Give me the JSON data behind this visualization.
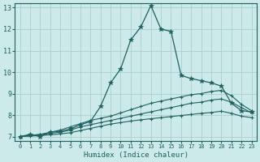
{
  "title": "",
  "xlabel": "Humidex (Indice chaleur)",
  "xlim": [
    -0.5,
    23.5
  ],
  "ylim": [
    6.8,
    13.2
  ],
  "yticks": [
    7,
    8,
    9,
    10,
    11,
    12,
    13
  ],
  "xticks": [
    0,
    1,
    2,
    3,
    4,
    5,
    6,
    7,
    8,
    9,
    10,
    11,
    12,
    13,
    14,
    15,
    16,
    17,
    18,
    19,
    20,
    21,
    22,
    23
  ],
  "bg_color": "#cceaea",
  "grid_color": "#aacece",
  "line_color": "#206060",
  "line1_x": [
    0,
    1,
    2,
    3,
    4,
    5,
    6,
    7,
    8,
    9,
    10,
    11,
    12,
    13,
    14,
    15,
    16,
    17,
    18,
    19,
    20,
    21,
    22,
    23
  ],
  "line1_y": [
    7.0,
    7.1,
    7.0,
    7.2,
    7.25,
    7.35,
    7.55,
    7.7,
    8.4,
    9.5,
    10.15,
    11.5,
    12.1,
    13.1,
    12.0,
    11.9,
    9.85,
    9.7,
    9.6,
    9.5,
    9.35,
    8.55,
    8.2,
    8.15
  ],
  "line2_x": [
    0,
    1,
    2,
    3,
    4,
    5,
    6,
    7,
    8,
    9,
    10,
    11,
    12,
    13,
    14,
    15,
    16,
    17,
    18,
    19,
    20,
    21,
    22,
    23
  ],
  "line2_y": [
    7.0,
    7.05,
    7.1,
    7.2,
    7.3,
    7.45,
    7.6,
    7.75,
    7.85,
    7.95,
    8.1,
    8.25,
    8.4,
    8.55,
    8.65,
    8.75,
    8.85,
    8.95,
    9.0,
    9.1,
    9.15,
    8.9,
    8.5,
    8.2
  ],
  "line3_x": [
    0,
    1,
    2,
    3,
    4,
    5,
    6,
    7,
    8,
    9,
    10,
    11,
    12,
    13,
    14,
    15,
    16,
    17,
    18,
    19,
    20,
    21,
    22,
    23
  ],
  "line3_y": [
    7.0,
    7.05,
    7.1,
    7.15,
    7.2,
    7.3,
    7.45,
    7.55,
    7.65,
    7.75,
    7.85,
    7.95,
    8.05,
    8.15,
    8.25,
    8.35,
    8.45,
    8.55,
    8.6,
    8.7,
    8.75,
    8.6,
    8.35,
    8.1
  ],
  "line4_x": [
    0,
    1,
    2,
    3,
    4,
    5,
    6,
    7,
    8,
    9,
    10,
    11,
    12,
    13,
    14,
    15,
    16,
    17,
    18,
    19,
    20,
    21,
    22,
    23
  ],
  "line4_y": [
    7.0,
    7.02,
    7.05,
    7.08,
    7.12,
    7.18,
    7.28,
    7.38,
    7.48,
    7.58,
    7.65,
    7.72,
    7.78,
    7.83,
    7.88,
    7.93,
    7.98,
    8.03,
    8.08,
    8.12,
    8.18,
    8.08,
    7.95,
    7.88
  ]
}
